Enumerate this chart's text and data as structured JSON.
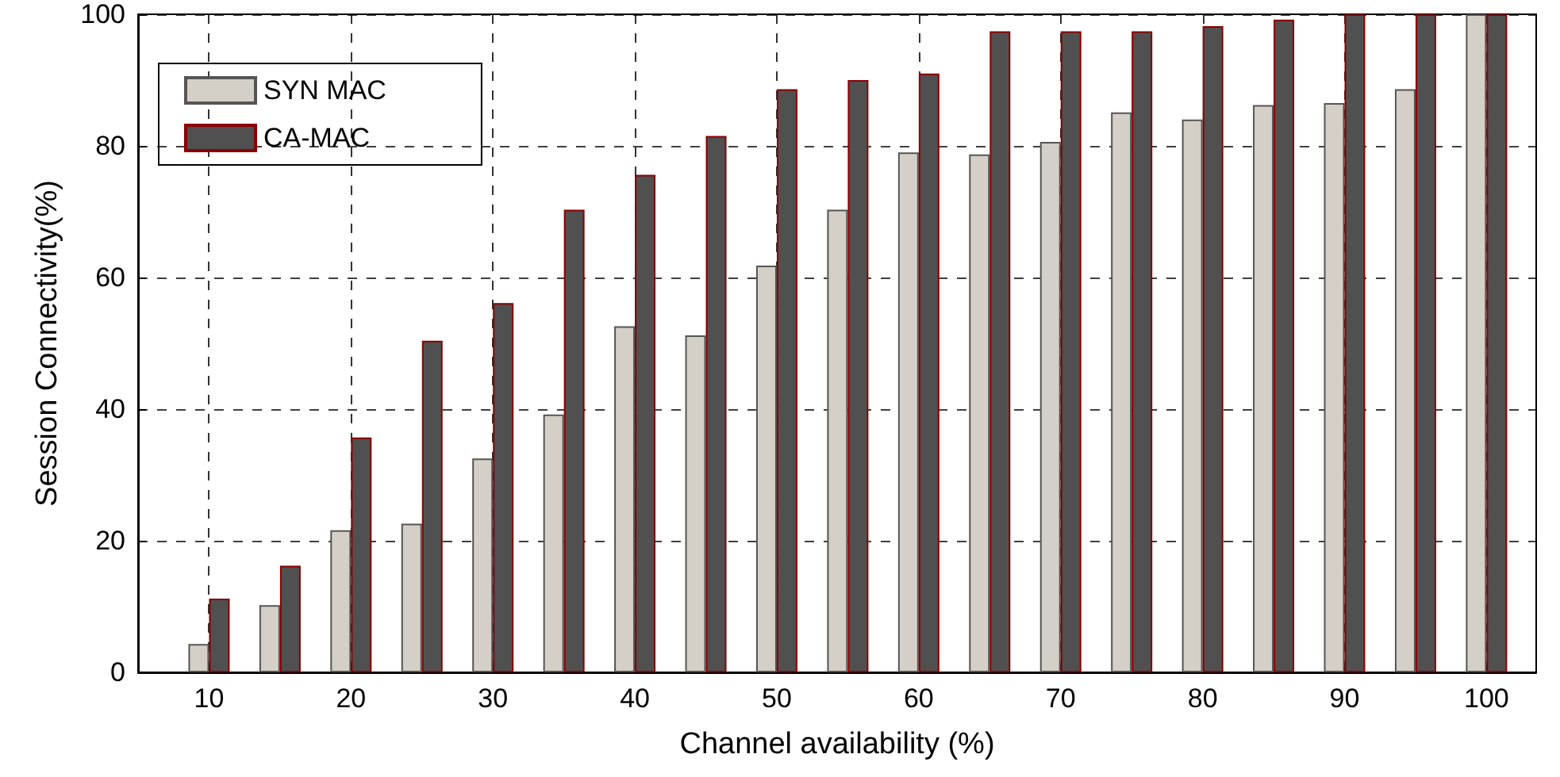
{
  "chart_data": {
    "type": "bar",
    "xlabel": "Channel availability (%)",
    "ylabel": "Session Connectivity(%)",
    "x": [
      10,
      15,
      20,
      25,
      30,
      35,
      40,
      45,
      50,
      55,
      60,
      65,
      70,
      75,
      80,
      85,
      90,
      95,
      100
    ],
    "series": [
      {
        "name": "SYN MAC",
        "color": "#d4d0c8",
        "values": [
          4.3,
          10.2,
          21.6,
          22.6,
          32.5,
          39.2,
          52.6,
          51.2,
          61.8,
          70.3,
          79.0,
          78.7,
          80.6,
          85.1,
          84.0,
          86.2,
          86.5,
          88.6,
          100
        ]
      },
      {
        "name": "CA-MAC",
        "color": "#505050",
        "values": [
          11.2,
          16.2,
          35.7,
          50.4,
          56.1,
          70.3,
          75.6,
          81.5,
          88.6,
          90.0,
          91.0,
          97.4,
          97.4,
          97.4,
          98.2,
          99.2,
          100,
          100,
          100
        ]
      }
    ],
    "xlim": [
      5,
      103.5
    ],
    "xticks": [
      10,
      20,
      30,
      40,
      50,
      60,
      70,
      80,
      90,
      100
    ],
    "ylim": [
      0,
      100
    ],
    "yticks": [
      0,
      20,
      40,
      60,
      80,
      100
    ],
    "grid": true,
    "legend": "top left"
  }
}
